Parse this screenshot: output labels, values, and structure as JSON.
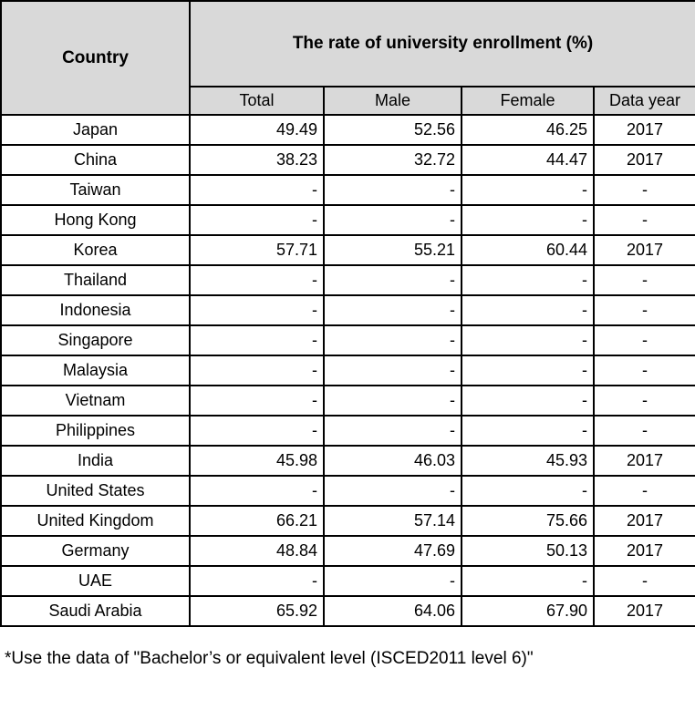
{
  "colors": {
    "header_bg": "#d9d9d9",
    "border": "#000000",
    "text": "#000000",
    "background": "#ffffff"
  },
  "table": {
    "header": {
      "country_label": "Country",
      "title": "The rate of university enrollment (%)",
      "columns": [
        "Total",
        "Male",
        "Female",
        "Data year"
      ]
    },
    "rows": [
      {
        "country": "Japan",
        "total": "49.49",
        "male": "52.56",
        "female": "46.25",
        "year": "2017"
      },
      {
        "country": "China",
        "total": "38.23",
        "male": "32.72",
        "female": "44.47",
        "year": "2017"
      },
      {
        "country": "Taiwan",
        "total": "-",
        "male": "-",
        "female": "-",
        "year": "-"
      },
      {
        "country": "Hong Kong",
        "total": "-",
        "male": "-",
        "female": "-",
        "year": "-"
      },
      {
        "country": "Korea",
        "total": "57.71",
        "male": "55.21",
        "female": "60.44",
        "year": "2017"
      },
      {
        "country": "Thailand",
        "total": "-",
        "male": "-",
        "female": "-",
        "year": "-"
      },
      {
        "country": "Indonesia",
        "total": "-",
        "male": "-",
        "female": "-",
        "year": "-"
      },
      {
        "country": "Singapore",
        "total": "-",
        "male": "-",
        "female": "-",
        "year": "-"
      },
      {
        "country": "Malaysia",
        "total": "-",
        "male": "-",
        "female": "-",
        "year": "-"
      },
      {
        "country": "Vietnam",
        "total": "-",
        "male": "-",
        "female": "-",
        "year": "-"
      },
      {
        "country": "Philippines",
        "total": "-",
        "male": "-",
        "female": "-",
        "year": "-"
      },
      {
        "country": "India",
        "total": "45.98",
        "male": "46.03",
        "female": "45.93",
        "year": "2017"
      },
      {
        "country": "United States",
        "total": "-",
        "male": "-",
        "female": "-",
        "year": "-"
      },
      {
        "country": "United Kingdom",
        "total": "66.21",
        "male": "57.14",
        "female": "75.66",
        "year": "2017"
      },
      {
        "country": "Germany",
        "total": "48.84",
        "male": "47.69",
        "female": "50.13",
        "year": "2017"
      },
      {
        "country": "UAE",
        "total": "-",
        "male": "-",
        "female": "-",
        "year": "-"
      },
      {
        "country": "Saudi Arabia",
        "total": "65.92",
        "male": "64.06",
        "female": "67.90",
        "year": "2017"
      }
    ],
    "footnote": "*Use the data of \"Bachelor’s or equivalent level (ISCED2011 level 6)\""
  }
}
